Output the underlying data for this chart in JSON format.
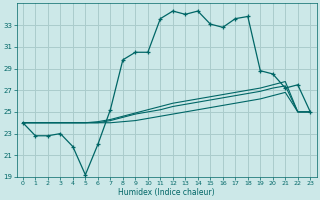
{
  "xlabel": "Humidex (Indice chaleur)",
  "bg_color": "#cce8e8",
  "grid_color": "#aacccc",
  "line_color": "#006666",
  "x": [
    0,
    1,
    2,
    3,
    4,
    5,
    6,
    7,
    8,
    9,
    10,
    11,
    12,
    13,
    14,
    15,
    16,
    17,
    18,
    19,
    20,
    21,
    22,
    23
  ],
  "y_main": [
    24.0,
    22.8,
    22.8,
    23.0,
    21.8,
    19.2,
    22.0,
    25.2,
    29.8,
    30.5,
    30.5,
    33.6,
    34.3,
    34.0,
    34.3,
    33.1,
    32.8,
    33.6,
    33.8,
    28.8,
    28.5,
    27.2,
    27.5,
    25.0
  ],
  "y_line2": [
    24.0,
    24.0,
    24.0,
    24.0,
    24.0,
    24.0,
    24.0,
    24.0,
    24.1,
    24.2,
    24.4,
    24.6,
    24.8,
    25.0,
    25.2,
    25.4,
    25.6,
    25.8,
    26.0,
    26.2,
    26.5,
    26.8,
    25.0,
    25.0
  ],
  "y_line3": [
    24.0,
    24.0,
    24.0,
    24.0,
    24.0,
    24.0,
    24.0,
    24.2,
    24.5,
    24.8,
    25.0,
    25.2,
    25.5,
    25.7,
    25.9,
    26.1,
    26.3,
    26.5,
    26.7,
    26.9,
    27.2,
    27.4,
    25.0,
    25.0
  ],
  "y_line4": [
    24.0,
    24.0,
    24.0,
    24.0,
    24.0,
    24.0,
    24.1,
    24.3,
    24.6,
    24.9,
    25.2,
    25.5,
    25.8,
    26.0,
    26.2,
    26.4,
    26.6,
    26.8,
    27.0,
    27.2,
    27.5,
    27.8,
    25.0,
    25.0
  ],
  "ylim": [
    19,
    35
  ],
  "yticks": [
    19,
    21,
    23,
    25,
    27,
    29,
    31,
    33
  ],
  "xlim": [
    -0.5,
    23.5
  ],
  "xticks": [
    0,
    1,
    2,
    3,
    4,
    5,
    6,
    7,
    8,
    9,
    10,
    11,
    12,
    13,
    14,
    15,
    16,
    17,
    18,
    19,
    20,
    21,
    22,
    23
  ]
}
